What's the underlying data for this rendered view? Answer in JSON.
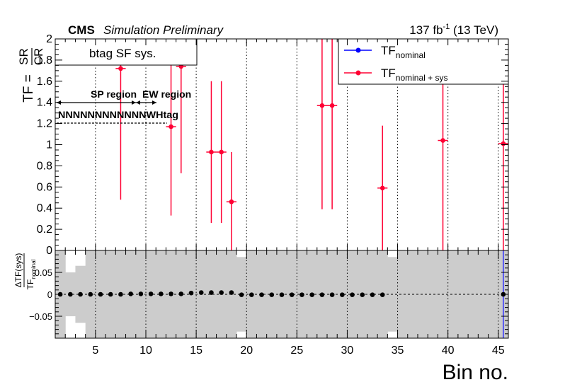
{
  "header": {
    "experiment": "CMS",
    "status": "Simulation Preliminary",
    "luminosity": "137 fb",
    "luminosity_exponent": "-1",
    "energy": " (13 TeV)"
  },
  "upper_panel": {
    "label_box": "btag SF sys.",
    "ylabel_prefix": "TF = ",
    "ylabel_numerator": "SR",
    "ylabel_denominator": "CR"
  },
  "lower_panel": {
    "ylabel_numerator": "ΔTF(sys)",
    "ylabel_denominator_main": "TF",
    "ylabel_denominator_sub": "nominal"
  },
  "legend": {
    "placement": "top-right",
    "entries": [
      {
        "main": "TF",
        "sub": "nominal",
        "color": "#0000ff"
      },
      {
        "main": "TF",
        "sub": "nominal + sys",
        "color": "#ff0033"
      }
    ]
  },
  "region_annotations": {
    "sp_region": "SP region",
    "ew_region": "EW region",
    "jet_labels": "NNNNNNNNNNNNWHtag"
  },
  "chart_data": [
    {
      "type": "scatter",
      "panel": "upper",
      "title": "",
      "xlabel": "",
      "ylabel": "TF = SR/CR",
      "xlim": [
        1,
        46
      ],
      "ylim": [
        0,
        2
      ],
      "x_ticks": [
        5,
        10,
        15,
        20,
        25,
        30,
        35,
        40,
        45
      ],
      "y_ticks": [
        0,
        0.2,
        0.4,
        0.6,
        0.8,
        1,
        1.2,
        1.4,
        1.6,
        1.8,
        2
      ],
      "y_tick_labels": [
        "0",
        "0.2",
        "0.4",
        "0.6",
        "0.8",
        "1",
        "1.2",
        "1.4",
        "1.6",
        "1.8",
        "2"
      ],
      "grid": "dotted vertical lines every 5 bins",
      "series": [
        {
          "name": "TF_nominal + sys",
          "color": "#ff0033",
          "points": [
            {
              "x": 7.5,
              "y": 1.72,
              "ylo": 0.48,
              "yhi": 2.0
            },
            {
              "x": 12.5,
              "y": 1.17,
              "ylo": 0.33,
              "yhi": 2.0
            },
            {
              "x": 13.5,
              "y": 1.74,
              "ylo": 0.73,
              "yhi": 2.0
            },
            {
              "x": 16.5,
              "y": 0.93,
              "ylo": 0.26,
              "yhi": 1.6
            },
            {
              "x": 17.5,
              "y": 0.93,
              "ylo": 0.26,
              "yhi": 1.6
            },
            {
              "x": 18.5,
              "y": 0.46,
              "ylo": 0.0,
              "yhi": 0.93
            },
            {
              "x": 27.5,
              "y": 1.37,
              "ylo": 0.39,
              "yhi": 2.0
            },
            {
              "x": 28.5,
              "y": 1.37,
              "ylo": 0.39,
              "yhi": 2.0
            },
            {
              "x": 33.5,
              "y": 0.59,
              "ylo": 0.0,
              "yhi": 1.18
            },
            {
              "x": 39.5,
              "y": 1.04,
              "ylo": 0.0,
              "yhi": 2.0
            },
            {
              "x": 45.5,
              "y": 1.01,
              "ylo": 0.0,
              "yhi": 2.0
            }
          ]
        }
      ]
    },
    {
      "type": "scatter",
      "panel": "lower",
      "title": "",
      "xlabel": "Bin no.",
      "ylabel": "ΔTF(sys)/TF_nominal",
      "xlim": [
        1,
        46
      ],
      "ylim": [
        -0.1,
        0.1
      ],
      "x_ticks": [
        5,
        10,
        15,
        20,
        25,
        30,
        35,
        40,
        45
      ],
      "y_ticks": [
        -0.05,
        0,
        0.05
      ],
      "y_tick_labels": [
        "−0.05",
        "0",
        "0.05"
      ],
      "grid": "dotted vertical lines every 5 bins, dashed line at 0",
      "band": {
        "name": "stat uncertainty",
        "color": "#cccccc",
        "bins": [
          {
            "x": 1.5,
            "half": 0.1
          },
          {
            "x": 2.5,
            "half": 0.05
          },
          {
            "x": 3.5,
            "half": 0.065
          },
          {
            "x": 4.5,
            "half": 0.1
          },
          {
            "x": 5.5,
            "half": 0.1
          },
          {
            "x": 6.5,
            "half": 0.1
          },
          {
            "x": 7.5,
            "half": 0.1
          },
          {
            "x": 8.5,
            "half": 0.1
          },
          {
            "x": 9.5,
            "half": 0.1
          },
          {
            "x": 10.5,
            "half": 0.1
          },
          {
            "x": 11.5,
            "half": 0.1
          },
          {
            "x": 12.5,
            "half": 0.1
          },
          {
            "x": 13.5,
            "half": 0.1
          },
          {
            "x": 14.5,
            "half": 0.1
          },
          {
            "x": 15.5,
            "half": 0.1
          },
          {
            "x": 16.5,
            "half": 0.1
          },
          {
            "x": 17.5,
            "half": 0.1
          },
          {
            "x": 18.5,
            "half": 0.1
          },
          {
            "x": 19.5,
            "half": 0.085
          },
          {
            "x": 20.5,
            "half": 0.1
          },
          {
            "x": 21.5,
            "half": 0.1
          },
          {
            "x": 22.5,
            "half": 0.1
          },
          {
            "x": 23.5,
            "half": 0.1
          },
          {
            "x": 24.5,
            "half": 0.1
          },
          {
            "x": 25.5,
            "half": 0.1
          },
          {
            "x": 26.5,
            "half": 0.1
          },
          {
            "x": 27.5,
            "half": 0.1
          },
          {
            "x": 28.5,
            "half": 0.1
          },
          {
            "x": 29.5,
            "half": 0.1
          },
          {
            "x": 30.5,
            "half": 0.1
          },
          {
            "x": 31.5,
            "half": 0.1
          },
          {
            "x": 32.5,
            "half": 0.1
          },
          {
            "x": 33.5,
            "half": 0.1
          },
          {
            "x": 34.5,
            "half": 0.085
          },
          {
            "x": 35.5,
            "half": 0.1
          },
          {
            "x": 36.5,
            "half": 0.1
          },
          {
            "x": 37.5,
            "half": 0.1
          },
          {
            "x": 38.5,
            "half": 0.1
          },
          {
            "x": 39.5,
            "half": 0.1
          },
          {
            "x": 40.5,
            "half": 0.1
          },
          {
            "x": 41.5,
            "half": 0.1
          },
          {
            "x": 42.5,
            "half": 0.1
          },
          {
            "x": 43.5,
            "half": 0.1
          },
          {
            "x": 44.5,
            "half": 0.1
          },
          {
            "x": 45.5,
            "half": 0.1
          }
        ]
      },
      "series": [
        {
          "name": "ratio",
          "color": "#000000",
          "points": [
            {
              "x": 1.5,
              "y": 0.0
            },
            {
              "x": 2.5,
              "y": 0.0
            },
            {
              "x": 3.5,
              "y": 0.0
            },
            {
              "x": 4.5,
              "y": 0.0
            },
            {
              "x": 5.5,
              "y": 0.0
            },
            {
              "x": 6.5,
              "y": 0.0
            },
            {
              "x": 7.5,
              "y": 0.0
            },
            {
              "x": 8.5,
              "y": 0.001
            },
            {
              "x": 9.5,
              "y": 0.001
            },
            {
              "x": 10.5,
              "y": 0.001
            },
            {
              "x": 11.5,
              "y": 0.001
            },
            {
              "x": 12.5,
              "y": 0.001
            },
            {
              "x": 13.5,
              "y": 0.001
            },
            {
              "x": 14.5,
              "y": 0.003
            },
            {
              "x": 15.5,
              "y": 0.004
            },
            {
              "x": 16.5,
              "y": 0.004
            },
            {
              "x": 17.5,
              "y": 0.004
            },
            {
              "x": 18.5,
              "y": 0.004
            },
            {
              "x": 19.5,
              "y": -0.001
            },
            {
              "x": 20.5,
              "y": -0.001
            },
            {
              "x": 21.5,
              "y": -0.001
            },
            {
              "x": 22.5,
              "y": -0.001
            },
            {
              "x": 23.5,
              "y": -0.001
            },
            {
              "x": 24.5,
              "y": -0.001
            },
            {
              "x": 25.5,
              "y": -0.001
            },
            {
              "x": 26.5,
              "y": -0.001
            },
            {
              "x": 27.5,
              "y": -0.001
            },
            {
              "x": 28.5,
              "y": -0.001
            },
            {
              "x": 29.5,
              "y": -0.001
            },
            {
              "x": 30.5,
              "y": -0.001
            },
            {
              "x": 31.5,
              "y": -0.001
            },
            {
              "x": 32.5,
              "y": -0.001
            },
            {
              "x": 33.5,
              "y": -0.001
            },
            {
              "x": 45.5,
              "y": 0.0
            }
          ]
        }
      ]
    }
  ]
}
